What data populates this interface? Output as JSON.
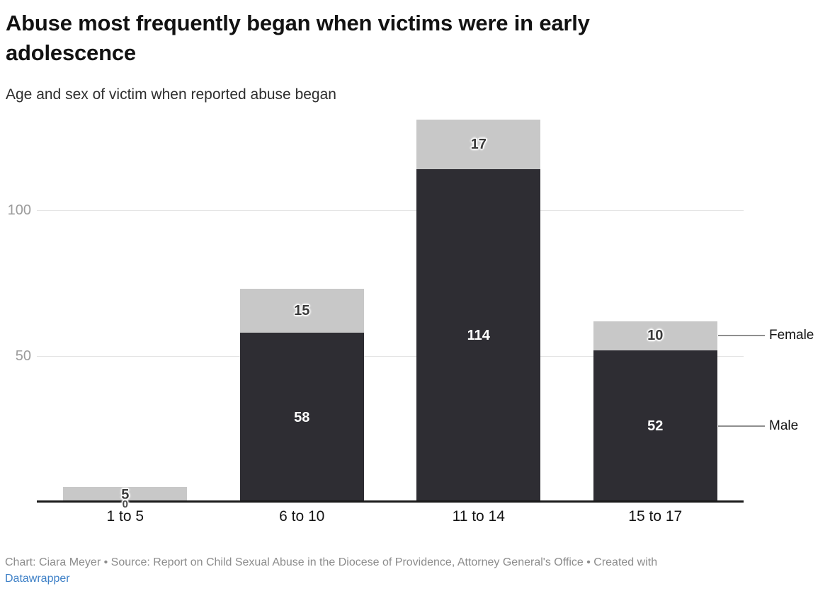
{
  "header": {
    "title": "Abuse most frequently began when victims were in early adolescence",
    "subtitle": "Age and sex of victim when reported abuse began"
  },
  "chart_data": {
    "type": "bar",
    "stacked": true,
    "title": "Abuse most frequently began when victims were in early adolescence",
    "subtitle": "Age and sex of victim when reported abuse began",
    "categories": [
      "1 to 5",
      "6 to 10",
      "11 to 14",
      "15 to 17"
    ],
    "series": [
      {
        "name": "Male",
        "color": "#2e2d33",
        "label_color": "#ffffff",
        "values": [
          0,
          58,
          114,
          52
        ]
      },
      {
        "name": "Female",
        "color": "#c8c8c8",
        "label_color": "#3a3a3a",
        "values": [
          5,
          15,
          17,
          10
        ]
      }
    ],
    "yticks": [
      50,
      100
    ],
    "ylim": [
      0,
      135
    ],
    "grid": true,
    "legend_position": "right",
    "legend": [
      {
        "label": "Female",
        "series": "Female"
      },
      {
        "label": "Male",
        "series": "Male"
      }
    ]
  },
  "footer": {
    "credit": "Chart: Ciara Meyer • Source: Report on Child Sexual Abuse in the Diocese of Providence, Attorney General's Office • Created with",
    "link_label": "Datawrapper"
  },
  "colors": {
    "male": "#2e2d33",
    "female": "#c8c8c8",
    "grid": "#e4e4e4",
    "axis": "#1a1a1a",
    "tick_label": "#9b9b9b",
    "category_label": "#141414",
    "legend_line": "#8f8f8f",
    "footer_text": "#8c8c8c",
    "link": "#3e80c7"
  }
}
